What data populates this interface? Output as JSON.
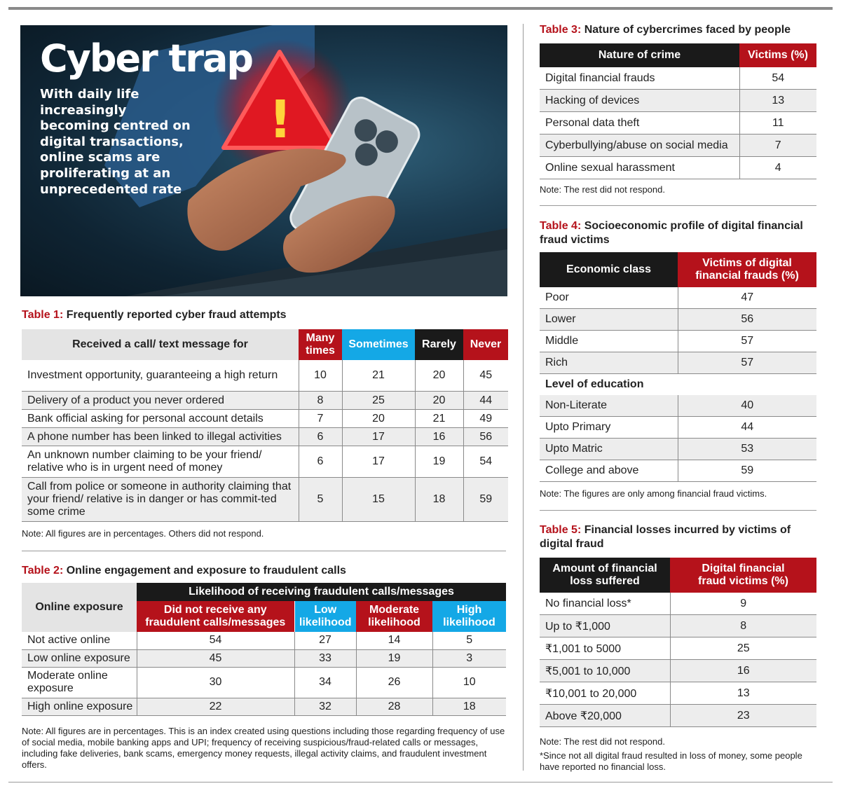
{
  "colors": {
    "red": "#b5121b",
    "blue": "#14a8e6",
    "black": "#1a1a1a",
    "gray_header": "#e4e4e4",
    "zebra": "#ededed"
  },
  "hero": {
    "title": "Cyber trap",
    "subtitle_lines": [
      "With daily life",
      "increasingly",
      "becoming centred on",
      "digital transactions,",
      "online scams are",
      "proliferating at an",
      "unprecedented rate"
    ],
    "warning_mark": "!"
  },
  "table1": {
    "num": "Table 1:",
    "title": " Frequently reported cyber fraud attempts",
    "headers": [
      "Received a call/ text message for",
      "Many times",
      "Sometimes",
      "Rarely",
      "Never"
    ],
    "rows": [
      {
        "label": "Investment opportunity, guaranteeing a high return",
        "values": [
          "10",
          "21",
          "20",
          "45"
        ]
      },
      {
        "label": "Delivery of a product you never ordered",
        "values": [
          "8",
          "25",
          "20",
          "44"
        ]
      },
      {
        "label": "Bank official asking for personal account details",
        "values": [
          "7",
          "20",
          "21",
          "49"
        ]
      },
      {
        "label": "A phone number has been linked to illegal activities",
        "values": [
          "6",
          "17",
          "16",
          "56"
        ]
      },
      {
        "label": "An unknown number claiming to be your friend/ relative who is in urgent need of money",
        "values": [
          "6",
          "17",
          "19",
          "54"
        ]
      },
      {
        "label": "Call from police or someone in authority claiming that your friend/ relative is in danger or has commit-ted some crime",
        "values": [
          "5",
          "15",
          "18",
          "59"
        ]
      }
    ],
    "note": "Note: All figures are in percentages. Others did not respond."
  },
  "table2": {
    "num": "Table 2:",
    "title": " Online engagement and exposure to fraudulent calls",
    "row_header": "Online exposure",
    "group_header": "Likelihood of receiving fraudulent calls/messages",
    "headers": [
      "Did not receive any fraudulent calls/messages",
      "Low likelihood",
      "Moderate likelihood",
      "High likelihood"
    ],
    "rows": [
      {
        "label": "Not active online",
        "values": [
          "54",
          "27",
          "14",
          "5"
        ]
      },
      {
        "label": "Low online exposure",
        "values": [
          "45",
          "33",
          "19",
          "3"
        ]
      },
      {
        "label": "Moderate online exposure",
        "values": [
          "30",
          "34",
          "26",
          "10"
        ]
      },
      {
        "label": "High online exposure",
        "values": [
          "22",
          "32",
          "28",
          "18"
        ]
      }
    ],
    "note": "Note: All figures are in percentages. This is an index created using questions including those regarding frequency of use of social media, mobile banking apps and UPI; frequency of receiving suspicious/fraud-related calls or messages, including fake deliveries, bank scams, emergency money requests, illegal activity claims, and fraudulent investment offers."
  },
  "table3": {
    "num": "Table 3:",
    "title": " Nature of cybercrimes faced by people",
    "headers": [
      "Nature of crime",
      "Victims (%)"
    ],
    "rows": [
      {
        "label": "Digital financial frauds",
        "value": "54"
      },
      {
        "label": "Hacking of devices",
        "value": "13"
      },
      {
        "label": "Personal data theft",
        "value": "11"
      },
      {
        "label": "Cyberbullying/abuse on social media",
        "value": "7"
      },
      {
        "label": "Online sexual harassment",
        "value": "4"
      }
    ],
    "note": "Note: The rest did not respond."
  },
  "table4": {
    "num": "Table 4:",
    "title": " Socioeconomic profile of digital financial fraud victims",
    "headers": [
      "Economic class",
      "Victims of digital financial frauds (%)"
    ],
    "rows_class": [
      {
        "label": "Poor",
        "value": "47"
      },
      {
        "label": "Lower",
        "value": "56"
      },
      {
        "label": "Middle",
        "value": "57"
      },
      {
        "label": "Rich",
        "value": "57"
      }
    ],
    "section2": "Level of education",
    "rows_edu": [
      {
        "label": "Non-Literate",
        "value": "40"
      },
      {
        "label": "Upto Primary",
        "value": "44"
      },
      {
        "label": "Upto Matric",
        "value": "53"
      },
      {
        "label": "College and above",
        "value": "59"
      }
    ],
    "note": "Note: The figures are only among financial fraud victims."
  },
  "table5": {
    "num": "Table 5:",
    "title": " Financial losses incurred by victims of digital fraud",
    "headers": [
      "Amount of financial loss suffered",
      "Digital financial fraud victims (%)"
    ],
    "rows": [
      {
        "label": "No financial loss*",
        "value": "9"
      },
      {
        "label": "Up to ₹1,000",
        "value": "8"
      },
      {
        "label": "₹1,001 to 5000",
        "value": "25"
      },
      {
        "label": "₹5,001 to 10,000",
        "value": "16"
      },
      {
        "label": "₹10,001 to 20,000",
        "value": "13"
      },
      {
        "label": "Above ₹20,000",
        "value": "23"
      }
    ],
    "note1": "Note: The rest did not respond.",
    "note2": "*Since not all digital fraud resulted in loss of money, some people have reported no financial loss."
  }
}
